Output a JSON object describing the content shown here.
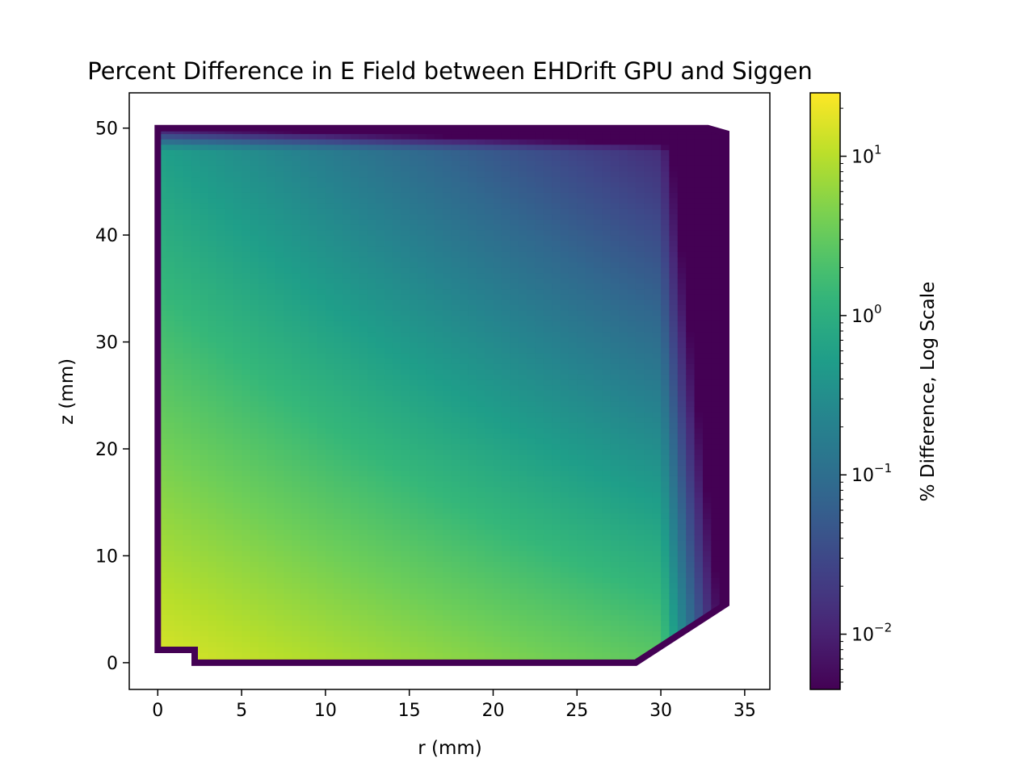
{
  "chart_data": {
    "type": "heatmap",
    "title": "Percent Difference in E Field between EHDrift GPU and Siggen",
    "xlabel": "r (mm)",
    "ylabel": "z (mm)",
    "xlim": [
      -1.7,
      36.5
    ],
    "ylim": [
      -2.5,
      53.3
    ],
    "xticks": [
      0,
      5,
      10,
      15,
      20,
      25,
      30,
      35
    ],
    "yticks": [
      0,
      10,
      20,
      30,
      40,
      50
    ],
    "xtick_labels": [
      "0",
      "5",
      "10",
      "15",
      "20",
      "25",
      "30",
      "35"
    ],
    "ytick_labels": [
      "0",
      "10",
      "20",
      "30",
      "40",
      "50"
    ],
    "grid": false,
    "colormap": "viridis",
    "colorbar": {
      "label": "% Difference, Log Scale",
      "scale": "log",
      "range": [
        0.0045,
        25
      ],
      "tick_values": [
        0.01,
        0.1,
        1,
        10
      ],
      "tick_labels": [
        {
          "base": "10",
          "exp": "−2"
        },
        {
          "base": "10",
          "exp": "−1"
        },
        {
          "base": "10",
          "exp": "0"
        },
        {
          "base": "10",
          "exp": "1"
        }
      ]
    },
    "region": {
      "description_points_r_z": [
        [
          0,
          1.2
        ],
        [
          2.2,
          1.2
        ],
        [
          2.2,
          0
        ],
        [
          28.5,
          0
        ],
        [
          33.9,
          5.5
        ],
        [
          33.9,
          49.5
        ],
        [
          32.8,
          50
        ],
        [
          0,
          50
        ]
      ],
      "approx_values": {
        "corner_bottom_left": 12,
        "r5_z0": 10,
        "r15_z0": 4,
        "r25_z0": 1.5,
        "r0_z25": 1.8,
        "r15_z20": 1.0,
        "r25_z25": 0.3,
        "r10_z40": 0.15,
        "r25_z40": 0.05,
        "top_edge": 0.005,
        "outer_edge_r34": 0.005
      }
    }
  },
  "colors": {
    "viridis": [
      "#440154",
      "#482878",
      "#3e4989",
      "#31688e",
      "#26828e",
      "#1f9e89",
      "#35b779",
      "#6ece58",
      "#b5de2b",
      "#fde725"
    ],
    "axis": "#000000",
    "background": "#ffffff"
  }
}
